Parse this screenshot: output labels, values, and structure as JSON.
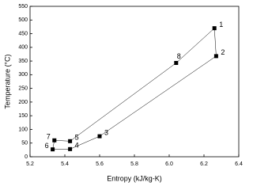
{
  "chart_data": {
    "type": "line",
    "x_label": "Entropy (kJ/kg-K)",
    "y_label": "Temperature (°C)",
    "series": [
      {
        "color": "#000000",
        "point_labels": [
          "1",
          "2",
          "3",
          "4",
          "6",
          "7",
          "5",
          "8"
        ],
        "x": [
          6.26,
          6.27,
          5.6,
          5.43,
          5.33,
          5.34,
          5.43,
          6.04
        ],
        "values": [
          470,
          368,
          75,
          28,
          27,
          60,
          57,
          343
        ]
      }
    ],
    "closed": true,
    "xlim": [
      5.2,
      6.4
    ],
    "xticks": [
      5.2,
      5.4,
      5.6,
      5.8,
      {
        "value": 6.0,
        "label": "6.0"
      },
      6.2,
      6.4
    ],
    "ylim": [
      0,
      550
    ],
    "yticks": [
      0,
      50,
      100,
      150,
      200,
      250,
      300,
      350,
      400,
      450,
      500,
      550
    ]
  }
}
